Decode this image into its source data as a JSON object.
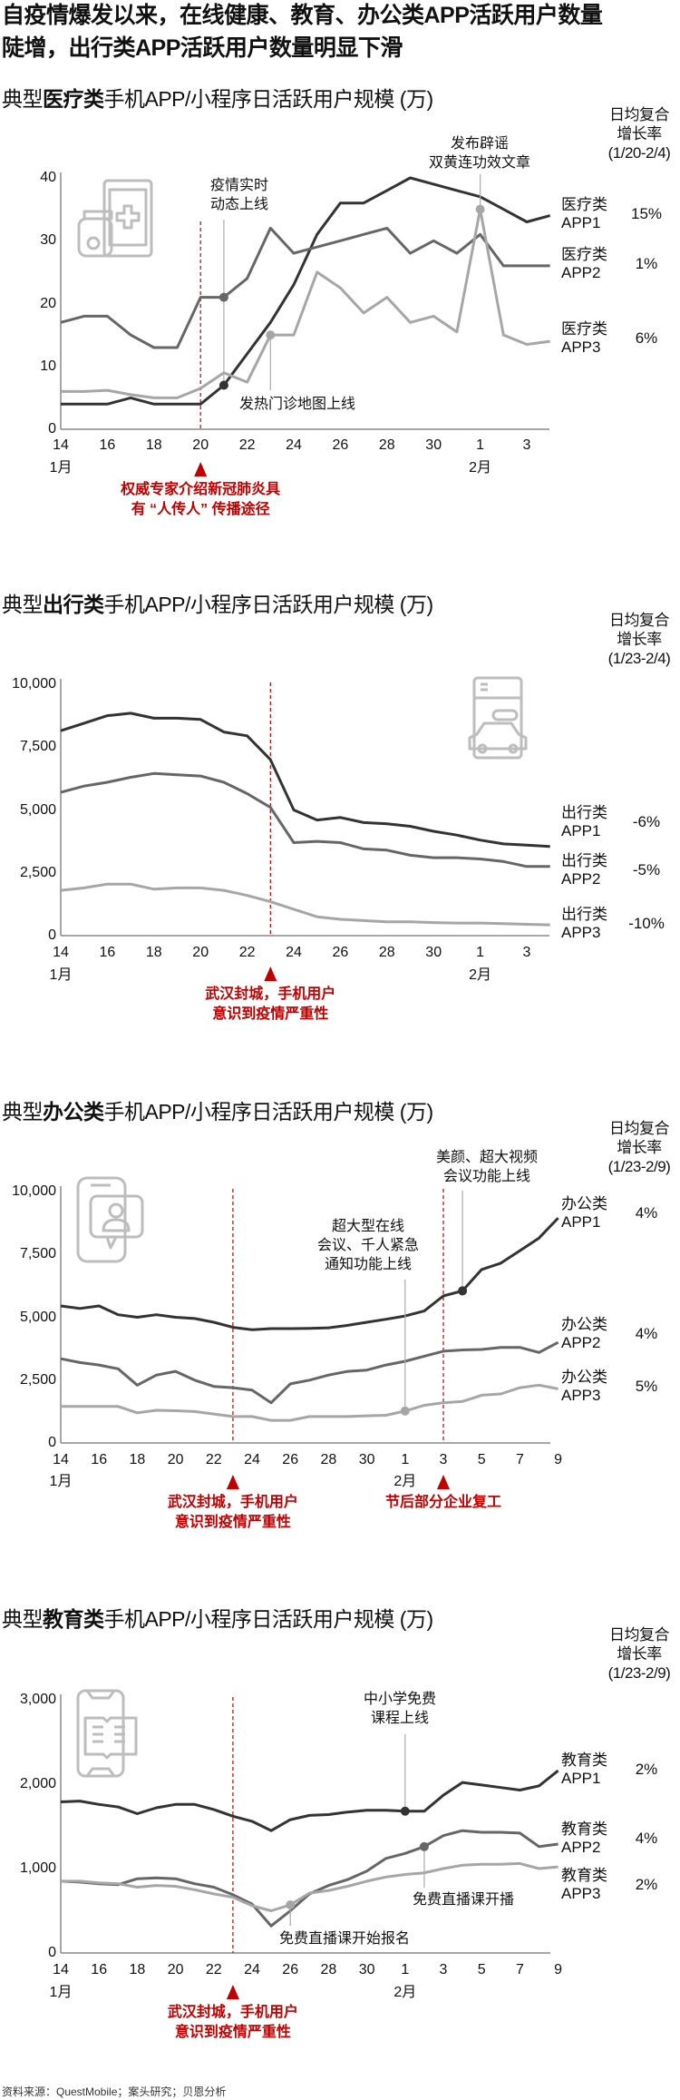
{
  "headline": [
    "自疫情爆发以来，在线健康、教育、办公类APP活跃用户数量",
    "陡增，出行类APP活跃用户数量明显下滑"
  ],
  "source": "资料来源：QuestMobile；案头研究；贝恩分析",
  "colors": {
    "app1": "#333333",
    "app2": "#666666",
    "app3": "#a6a6a6",
    "accent": "#c00000",
    "axis": "#888888",
    "icon": "#bdbdbd"
  },
  "chart_data": [
    {
      "type": "line",
      "icon": "medicine-tablet-icon",
      "title_prefix": "典型",
      "title_bold": "医疗类",
      "title_suffix": "手机APP/小程序日活跃用户规模 (万)",
      "rate_header": [
        "日均复合",
        "增长率",
        "(1/20-2/4)"
      ],
      "x": [
        "1/14",
        "1/15",
        "1/16",
        "1/17",
        "1/18",
        "1/19",
        "1/20",
        "1/21",
        "1/22",
        "1/23",
        "1/24",
        "1/25",
        "1/26",
        "1/27",
        "1/28",
        "1/29",
        "1/30",
        "1/31",
        "2/1",
        "2/2",
        "2/3",
        "2/4"
      ],
      "x_ticks": [
        {
          "x": "1/14",
          "label": "14"
        },
        {
          "x": "1/16",
          "label": "16"
        },
        {
          "x": "1/18",
          "label": "18"
        },
        {
          "x": "1/20",
          "label": "20"
        },
        {
          "x": "1/22",
          "label": "22"
        },
        {
          "x": "1/24",
          "label": "24"
        },
        {
          "x": "1/26",
          "label": "26"
        },
        {
          "x": "1/28",
          "label": "28"
        },
        {
          "x": "1/30",
          "label": "30"
        },
        {
          "x": "2/1",
          "label": "1"
        },
        {
          "x": "2/3",
          "label": "3"
        }
      ],
      "month_labels": [
        {
          "x": "1/14",
          "label": "1月"
        },
        {
          "x": "2/1",
          "label": "2月"
        }
      ],
      "ylim": [
        0,
        40
      ],
      "y_ticks": [
        {
          "v": 0,
          "label": "0"
        },
        {
          "v": 10,
          "label": "10"
        },
        {
          "v": 20,
          "label": "20"
        },
        {
          "v": 30,
          "label": "30"
        },
        {
          "v": 40,
          "label": "40"
        }
      ],
      "series": [
        {
          "name_line1": "医疗类",
          "name_line2": "APP1",
          "growth": "15%",
          "values": [
            4,
            4,
            4,
            5,
            4,
            4,
            4,
            7,
            12,
            17,
            23,
            31,
            36,
            36,
            38,
            40,
            39,
            38,
            37,
            35,
            33,
            34
          ]
        },
        {
          "name_line1": "医疗类",
          "name_line2": "APP2",
          "growth": "1%",
          "values": [
            17,
            18,
            18,
            15,
            13,
            13,
            21,
            21,
            24,
            32,
            28,
            29,
            30,
            31,
            32,
            28,
            30,
            28,
            31,
            26,
            26,
            26
          ]
        },
        {
          "name_line1": "医疗类",
          "name_line2": "APP3",
          "growth": "6%",
          "values": [
            6,
            6,
            6.2,
            5.5,
            5,
            5,
            6.5,
            9,
            7.5,
            15,
            15,
            25,
            22.5,
            18.5,
            21,
            17,
            18,
            15.5,
            35,
            15,
            13.5,
            14
          ]
        }
      ],
      "annotations": [
        {
          "text": [
            "疫情实时",
            "动态上线"
          ],
          "x": "1/21",
          "dots": [
            {
              "series": 1
            },
            {
              "series": 0
            }
          ]
        },
        {
          "text": [
            "发热门诊地图上线"
          ],
          "x": "1/23",
          "dots": [
            {
              "series": 2
            }
          ]
        },
        {
          "text": [
            "发布辟谣",
            "双黄连功效文章"
          ],
          "x": "2/1",
          "dots": [
            {
              "series": 2
            }
          ]
        }
      ],
      "events": [
        {
          "x": "1/20",
          "text": [
            "权威专家介绍新冠肺炎具",
            "有 “人传人” 传播途径"
          ]
        }
      ]
    },
    {
      "type": "line",
      "icon": "taxi-app-icon",
      "title_prefix": "典型",
      "title_bold": "出行类",
      "title_suffix": "手机APP/小程序日活跃用户规模 (万)",
      "rate_header": [
        "日均复合",
        "增长率",
        "(1/23-2/4)"
      ],
      "x": [
        "1/14",
        "1/15",
        "1/16",
        "1/17",
        "1/18",
        "1/19",
        "1/20",
        "1/21",
        "1/22",
        "1/23",
        "1/24",
        "1/25",
        "1/26",
        "1/27",
        "1/28",
        "1/29",
        "1/30",
        "1/31",
        "2/1",
        "2/2",
        "2/3",
        "2/4"
      ],
      "x_ticks": [
        {
          "x": "1/14",
          "label": "14"
        },
        {
          "x": "1/16",
          "label": "16"
        },
        {
          "x": "1/18",
          "label": "18"
        },
        {
          "x": "1/20",
          "label": "20"
        },
        {
          "x": "1/22",
          "label": "22"
        },
        {
          "x": "1/24",
          "label": "24"
        },
        {
          "x": "1/26",
          "label": "26"
        },
        {
          "x": "1/28",
          "label": "28"
        },
        {
          "x": "1/30",
          "label": "30"
        },
        {
          "x": "2/1",
          "label": "1"
        },
        {
          "x": "2/3",
          "label": "3"
        }
      ],
      "month_labels": [
        {
          "x": "1/14",
          "label": "1月"
        },
        {
          "x": "2/1",
          "label": "2月"
        }
      ],
      "ylim": [
        0,
        10000
      ],
      "y_ticks": [
        {
          "v": 0,
          "label": "0"
        },
        {
          "v": 2500,
          "label": "2,500"
        },
        {
          "v": 5000,
          "label": "5,000"
        },
        {
          "v": 7500,
          "label": "7,500"
        },
        {
          "v": 10000,
          "label": "10,000"
        }
      ],
      "series": [
        {
          "name_line1": "出行类",
          "name_line2": "APP1",
          "growth": "-6%",
          "values": [
            8150,
            8450,
            8750,
            8850,
            8650,
            8650,
            8600,
            8100,
            7950,
            7000,
            5000,
            4600,
            4700,
            4500,
            4450,
            4350,
            4150,
            4000,
            3800,
            3650,
            3600,
            3550
          ]
        },
        {
          "name_line1": "出行类",
          "name_line2": "APP2",
          "growth": "-5%",
          "values": [
            5700,
            5950,
            6100,
            6300,
            6450,
            6400,
            6350,
            6100,
            5650,
            5100,
            3700,
            3750,
            3700,
            3450,
            3400,
            3200,
            3100,
            3100,
            3050,
            2950,
            2750,
            2750
          ]
        },
        {
          "name_line1": "出行类",
          "name_line2": "APP3",
          "growth": "-10%",
          "values": [
            1800,
            1900,
            2050,
            2050,
            1850,
            1900,
            1900,
            1800,
            1600,
            1350,
            1050,
            750,
            650,
            600,
            550,
            550,
            520,
            500,
            500,
            480,
            450,
            430
          ]
        }
      ],
      "annotations": [],
      "events": [
        {
          "x": "1/23",
          "text": [
            "武汉封城，手机用户",
            "意识到疫情严重性"
          ]
        }
      ]
    },
    {
      "type": "line",
      "icon": "video-chat-phone-icon",
      "title_prefix": "典型",
      "title_bold": "办公类",
      "title_suffix": "手机APP/小程序日活跃用户规模 (万)",
      "rate_header": [
        "日均复合",
        "增长率",
        "(1/23-2/9)"
      ],
      "x": [
        "1/14",
        "1/15",
        "1/16",
        "1/17",
        "1/18",
        "1/19",
        "1/20",
        "1/21",
        "1/22",
        "1/23",
        "1/24",
        "1/25",
        "1/26",
        "1/27",
        "1/28",
        "1/29",
        "1/30",
        "1/31",
        "2/1",
        "2/2",
        "2/3",
        "2/4",
        "2/5",
        "2/6",
        "2/7",
        "2/8",
        "2/9"
      ],
      "x_ticks": [
        {
          "x": "1/14",
          "label": "14"
        },
        {
          "x": "1/16",
          "label": "16"
        },
        {
          "x": "1/18",
          "label": "18"
        },
        {
          "x": "1/20",
          "label": "20"
        },
        {
          "x": "1/22",
          "label": "22"
        },
        {
          "x": "1/24",
          "label": "24"
        },
        {
          "x": "1/26",
          "label": "26"
        },
        {
          "x": "1/28",
          "label": "28"
        },
        {
          "x": "1/30",
          "label": "30"
        },
        {
          "x": "2/1",
          "label": "1"
        },
        {
          "x": "2/3",
          "label": "3"
        },
        {
          "x": "2/5",
          "label": "5"
        },
        {
          "x": "2/7",
          "label": "7"
        },
        {
          "x": "2/9",
          "label": "9"
        }
      ],
      "month_labels": [
        {
          "x": "1/14",
          "label": "1月"
        },
        {
          "x": "2/1",
          "label": "2月"
        }
      ],
      "ylim": [
        0,
        10000
      ],
      "y_ticks": [
        {
          "v": 0,
          "label": "0"
        },
        {
          "v": 2500,
          "label": "2,500"
        },
        {
          "v": 5000,
          "label": "5,000"
        },
        {
          "v": 7500,
          "label": "7,500"
        },
        {
          "v": 10000,
          "label": "10,000"
        }
      ],
      "series": [
        {
          "name_line1": "办公类",
          "name_line2": "APP1",
          "growth": "4%",
          "values": [
            5450,
            5350,
            5450,
            5100,
            5000,
            5100,
            5000,
            4950,
            4800,
            4600,
            4500,
            4550,
            4550,
            4560,
            4580,
            4680,
            4800,
            4920,
            5050,
            5250,
            5850,
            6050,
            6900,
            7150,
            7650,
            8150,
            8950
          ]
        },
        {
          "name_line1": "办公类",
          "name_line2": "APP2",
          "growth": "4%",
          "values": [
            3350,
            3200,
            3100,
            2950,
            2300,
            2700,
            2850,
            2500,
            2250,
            2200,
            2100,
            1600,
            2350,
            2500,
            2700,
            2850,
            2900,
            3100,
            3250,
            3450,
            3650,
            3700,
            3720,
            3800,
            3800,
            3600,
            4000
          ]
        },
        {
          "name_line1": "办公类",
          "name_line2": "APP3",
          "growth": "5%",
          "values": [
            1450,
            1450,
            1450,
            1450,
            1200,
            1300,
            1280,
            1250,
            1150,
            1050,
            1050,
            900,
            900,
            1050,
            1050,
            1050,
            1080,
            1100,
            1270,
            1500,
            1600,
            1650,
            1900,
            1950,
            2200,
            2300,
            2150
          ]
        }
      ],
      "annotations": [
        {
          "text": [
            "超大型在线",
            "会议、千人紧急",
            "通知功能上线"
          ],
          "x": "2/1",
          "dots": [
            {
              "series": 2
            }
          ]
        },
        {
          "text": [
            "美颜、超大视频",
            "会议功能上线"
          ],
          "x": "2/4",
          "dots": [
            {
              "series": 0
            }
          ]
        }
      ],
      "events": [
        {
          "x": "1/23",
          "text": [
            "武汉封城，手机用户",
            "意识到疫情严重性"
          ]
        },
        {
          "x": "2/3",
          "text": [
            "节后部分企业复工"
          ]
        }
      ]
    },
    {
      "type": "line",
      "icon": "book-phone-icon",
      "title_prefix": "典型",
      "title_bold": "教育类",
      "title_suffix": "手机APP/小程序日活跃用户规模 (万)",
      "rate_header": [
        "日均复合",
        "增长率",
        "(1/23-2/9)"
      ],
      "x": [
        "1/14",
        "1/15",
        "1/16",
        "1/17",
        "1/18",
        "1/19",
        "1/20",
        "1/21",
        "1/22",
        "1/23",
        "1/24",
        "1/25",
        "1/26",
        "1/27",
        "1/28",
        "1/29",
        "1/30",
        "1/31",
        "2/1",
        "2/2",
        "2/3",
        "2/4",
        "2/5",
        "2/6",
        "2/7",
        "2/8",
        "2/9"
      ],
      "x_ticks": [
        {
          "x": "1/14",
          "label": "14"
        },
        {
          "x": "1/16",
          "label": "16"
        },
        {
          "x": "1/18",
          "label": "18"
        },
        {
          "x": "1/20",
          "label": "20"
        },
        {
          "x": "1/22",
          "label": "22"
        },
        {
          "x": "1/24",
          "label": "24"
        },
        {
          "x": "1/26",
          "label": "26"
        },
        {
          "x": "1/28",
          "label": "28"
        },
        {
          "x": "1/30",
          "label": "30"
        },
        {
          "x": "2/1",
          "label": "1"
        },
        {
          "x": "2/3",
          "label": "3"
        },
        {
          "x": "2/5",
          "label": "5"
        },
        {
          "x": "2/7",
          "label": "7"
        },
        {
          "x": "2/9",
          "label": "9"
        }
      ],
      "month_labels": [
        {
          "x": "1/14",
          "label": "1月"
        },
        {
          "x": "2/1",
          "label": "2月"
        }
      ],
      "ylim": [
        0,
        3000
      ],
      "y_ticks": [
        {
          "v": 0,
          "label": "0"
        },
        {
          "v": 1000,
          "label": "1,000"
        },
        {
          "v": 2000,
          "label": "2,000"
        },
        {
          "v": 3000,
          "label": "3,000"
        }
      ],
      "series": [
        {
          "name_line1": "教育类",
          "name_line2": "APP1",
          "growth": "2%",
          "values": [
            1790,
            1800,
            1760,
            1730,
            1650,
            1720,
            1760,
            1760,
            1700,
            1620,
            1560,
            1450,
            1580,
            1630,
            1640,
            1670,
            1690,
            1690,
            1680,
            1680,
            1870,
            2020,
            1990,
            1960,
            1930,
            1980,
            2160
          ]
        },
        {
          "name_line1": "教育类",
          "name_line2": "APP2",
          "growth": "4%",
          "values": [
            850,
            840,
            820,
            810,
            880,
            890,
            880,
            820,
            780,
            690,
            580,
            320,
            500,
            700,
            800,
            870,
            970,
            1120,
            1180,
            1260,
            1390,
            1450,
            1430,
            1430,
            1420,
            1260,
            1290
          ]
        },
        {
          "name_line1": "教育类",
          "name_line2": "APP3",
          "growth": "2%",
          "values": [
            850,
            850,
            830,
            820,
            780,
            800,
            790,
            750,
            700,
            660,
            560,
            500,
            570,
            710,
            740,
            790,
            850,
            900,
            930,
            950,
            1000,
            1040,
            1050,
            1050,
            1060,
            1000,
            1020
          ]
        }
      ],
      "annotations": [
        {
          "text": [
            "中小学免费",
            "课程上线"
          ],
          "x": "2/1",
          "dots": [
            {
              "series": 0
            }
          ]
        },
        {
          "text": [
            "免费直播课开播"
          ],
          "x": "2/2",
          "dots": [
            {
              "series": 1
            }
          ]
        },
        {
          "text": [
            "免费直播课开始报名"
          ],
          "x": "1/26",
          "dots": [
            {
              "series": 2
            }
          ]
        }
      ],
      "events": [
        {
          "x": "1/23",
          "text": [
            "武汉封城，手机用户",
            "意识到疫情严重性"
          ]
        }
      ]
    }
  ]
}
